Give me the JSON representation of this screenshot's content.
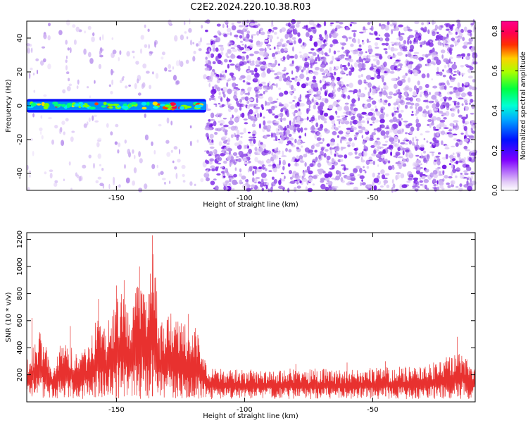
{
  "title": "C2E2.2024.220.10.38.R03",
  "colors": {
    "background": "#ffffff",
    "snr_line": "#e8312f",
    "axis": "#000000",
    "spectrogram_low": "#dcc8f5",
    "spectrogram_mid": "#7a1fe6",
    "spectrogram_high": "#ff0000"
  },
  "chart_data": [
    {
      "type": "heatmap",
      "title": "C2E2.2024.220.10.38.R03",
      "xlabel": "Height of straight line (km)",
      "ylabel": "Frequency (Hz)",
      "xlim": [
        -185,
        -10
      ],
      "ylim": [
        -50,
        50
      ],
      "x_ticks": [
        -150,
        -100,
        -50
      ],
      "y_ticks": [
        -40,
        -20,
        0,
        20,
        40
      ],
      "colorbar": {
        "label": "Normalized spectral amplitude",
        "range": [
          0.0,
          0.85
        ],
        "ticks": [
          0.0,
          0.2,
          0.4,
          0.6,
          0.8
        ],
        "colormap": "rainbow"
      },
      "features": {
        "signal_band_center_hz": 0,
        "signal_band_halfwidth_hz": 3,
        "signal_band_x_range": [
          -185,
          -115
        ],
        "signal_band_amplitude_range": [
          0.3,
          0.85
        ],
        "noise_onset_x": -115,
        "noise_amplitude_range": [
          0.02,
          0.25
        ]
      }
    },
    {
      "type": "line",
      "xlabel": "Height of straight line (km)",
      "ylabel": "SNR (10 * v/v)",
      "xlim": [
        -185,
        -10
      ],
      "ylim": [
        0,
        1250
      ],
      "x_ticks": [
        -150,
        -100,
        -50
      ],
      "y_ticks": [
        200,
        400,
        600,
        800,
        1000,
        1200
      ],
      "series": [
        {
          "color": "#e8312f",
          "envelope": [
            {
              "x": -185,
              "y": 320
            },
            {
              "x": -180,
              "y": 520
            },
            {
              "x": -175,
              "y": 300
            },
            {
              "x": -170,
              "y": 500
            },
            {
              "x": -165,
              "y": 350
            },
            {
              "x": -160,
              "y": 450
            },
            {
              "x": -157,
              "y": 700
            },
            {
              "x": -154,
              "y": 560
            },
            {
              "x": -150,
              "y": 760
            },
            {
              "x": -147,
              "y": 840
            },
            {
              "x": -145,
              "y": 640
            },
            {
              "x": -141,
              "y": 1000
            },
            {
              "x": -138,
              "y": 740
            },
            {
              "x": -136,
              "y": 1190
            },
            {
              "x": -133,
              "y": 560
            },
            {
              "x": -130,
              "y": 680
            },
            {
              "x": -126,
              "y": 600
            },
            {
              "x": -122,
              "y": 560
            },
            {
              "x": -119,
              "y": 580
            },
            {
              "x": -116,
              "y": 400
            },
            {
              "x": -114,
              "y": 250
            },
            {
              "x": -100,
              "y": 240
            },
            {
              "x": -80,
              "y": 250
            },
            {
              "x": -60,
              "y": 240
            },
            {
              "x": -45,
              "y": 260
            },
            {
              "x": -30,
              "y": 260
            },
            {
              "x": -15,
              "y": 380
            },
            {
              "x": -10,
              "y": 270
            }
          ],
          "peaks": [
            {
              "x": -136,
              "y": 1230
            },
            {
              "x": -141,
              "y": 1000
            },
            {
              "x": -147,
              "y": 900
            },
            {
              "x": -150,
              "y": 860
            },
            {
              "x": -157,
              "y": 760
            },
            {
              "x": -168,
              "y": 560
            },
            {
              "x": -183,
              "y": 620
            },
            {
              "x": -122,
              "y": 650
            },
            {
              "x": -17,
              "y": 480
            },
            {
              "x": -45,
              "y": 300
            },
            {
              "x": -60,
              "y": 290
            },
            {
              "x": -80,
              "y": 280
            }
          ]
        }
      ]
    }
  ]
}
